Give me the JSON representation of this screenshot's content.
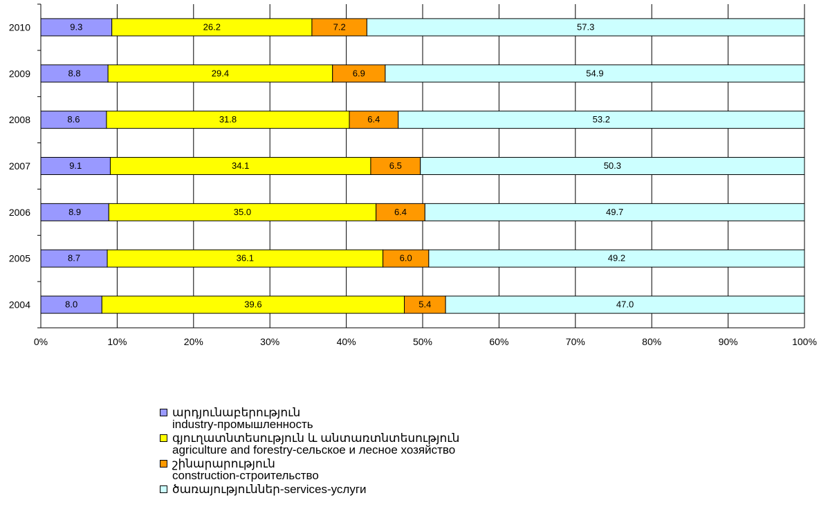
{
  "chart_data": {
    "type": "bar",
    "orientation": "horizontal",
    "stacked": "percent",
    "categories": [
      "2010",
      "2009",
      "2008",
      "2007",
      "2006",
      "2005",
      "2004"
    ],
    "series": [
      {
        "name": "արդյունաբերություն industry-промышленность",
        "color": "#9999ff",
        "values": [
          9.3,
          8.8,
          8.6,
          9.1,
          8.9,
          8.7,
          8.0
        ]
      },
      {
        "name": "գյուղատնտեսություն և անտառտնտեսություն agriculture and forestry-сельское и лесное хозяйство",
        "color": "#ffff00",
        "values": [
          26.2,
          29.4,
          31.8,
          34.1,
          35.0,
          36.1,
          39.6
        ]
      },
      {
        "name": "շինարարություն construction-строительство",
        "color": "#ff9900",
        "values": [
          7.2,
          6.9,
          6.4,
          6.5,
          6.4,
          6.0,
          5.4
        ]
      },
      {
        "name": "ծառայություններ-services-услуги",
        "color": "#ccffff",
        "values": [
          57.3,
          54.9,
          53.2,
          50.3,
          49.7,
          49.2,
          47.0
        ]
      }
    ],
    "value_labels": [
      [
        "9.3",
        "26.2",
        "7.2",
        "57.3"
      ],
      [
        "8.8",
        "29.4",
        "6.9",
        "54.9"
      ],
      [
        "8.6",
        "31.8",
        "6.4",
        "53.2"
      ],
      [
        "9.1",
        "34.1",
        "6.5",
        "50.3"
      ],
      [
        "8.9",
        "35.0",
        "6.4",
        "49.7"
      ],
      [
        "8.7",
        "36.1",
        "6.0",
        "49.2"
      ],
      [
        "8.0",
        "39.6",
        "5.4",
        "47.0"
      ]
    ],
    "x_ticks": [
      "0%",
      "10%",
      "20%",
      "30%",
      "40%",
      "50%",
      "60%",
      "70%",
      "80%",
      "90%",
      "100%"
    ],
    "xlim": [
      0,
      100
    ],
    "grid": true,
    "legend_position": "bottom"
  },
  "legend": {
    "items": [
      {
        "color": "#9999ff",
        "line1": "արդյունաբերություն",
        "line2": "industry-промышленность"
      },
      {
        "color": "#ffff00",
        "line1": "գյուղատնտեսություն և անտառտնտեսություն",
        "line2": "agriculture and forestry-сельское и лесное хозяйство"
      },
      {
        "color": "#ff9900",
        "line1": "շինարարություն",
        "line2": "construction-строительство"
      },
      {
        "color": "#ccffff",
        "line1": "ծառայություններ-services-услуги",
        "line2": ""
      }
    ]
  }
}
